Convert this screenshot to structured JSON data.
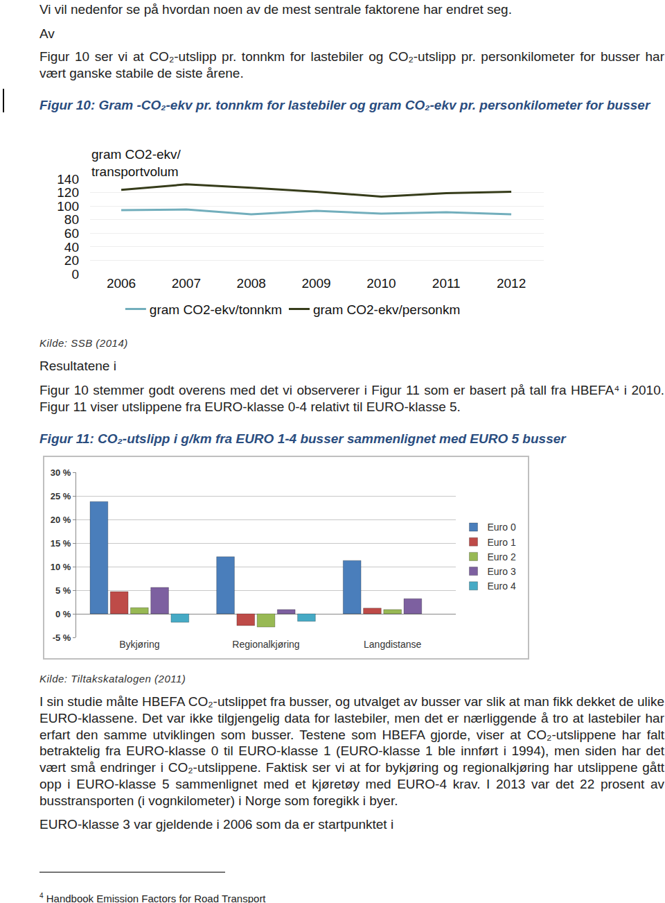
{
  "page": {
    "intro": "Vi vil nedenfor se på hvordan noen av de mest sentrale faktorene har endret seg.",
    "av": "Av",
    "para1": "Figur 10 ser vi at CO₂-utslipp pr. tonnkm for lastebiler og CO₂-utslipp pr. personkilometer for busser har vært ganske stabile de siste årene.",
    "fig10_caption": "Figur 10: Gram -CO₂-ekv pr. tonnkm for lastebiler og gram CO₂-ekv pr. personkilometer for busser",
    "fig10_source": "Kilde: SSB (2014)",
    "resultatene": "Resultatene i",
    "para2": "Figur 10 stemmer godt overens med det vi observerer i Figur 11 som er basert på tall fra HBEFA⁴ i 2010. Figur 11 viser utslippene fra EURO-klasse 0-4 relativt til EURO-klasse 5.",
    "fig11_caption": "Figur 11: CO₂-utslipp i g/km fra EURO 1-4 busser sammenlignet med EURO 5 busser",
    "fig11_source": "Kilde: Tiltakskatalogen (2011)",
    "para3": "I sin studie målte HBEFA CO₂-utslippet fra busser, og utvalget av busser var slik at man fikk dekket de ulike EURO-klassene. Det var ikke tilgjengelig data for lastebiler, men det er nærliggende å tro at lastebiler har erfart den samme utviklingen som busser. Testene som HBEFA gjorde, viser at CO₂-utslippene har falt betraktelig fra EURO-klasse 0 til EURO-klasse 1 (EURO-klasse 1 ble innført i 1994), men siden har det vært små endringer i CO₂-utslippene. Faktisk ser vi at for bykjøring og regionalkjøring har utslippene gått opp i EURO-klasse 5 sammenlignet med et kjøretøy med EURO-4 krav. I 2013 var det 22 prosent av busstransporten (i vognkilometer) i Norge som foregikk i byer.",
    "para4": "EURO-klasse 3 var gjeldende i 2006 som da er startpunktet i",
    "footnote_mark": "4",
    "footnote_text": "Handbook Emission Factors for Road Transport"
  },
  "chart_data": [
    {
      "type": "line",
      "y_label": "gram CO2-ekv/ transportvolum",
      "categories": [
        "2006",
        "2007",
        "2008",
        "2009",
        "2010",
        "2011",
        "2012"
      ],
      "series": [
        {
          "name": "gram CO2-ekv/tonnkm",
          "color": "#72aebc",
          "values": [
            94,
            95,
            88,
            93,
            89,
            91,
            88
          ]
        },
        {
          "name": "gram CO2-ekv/personkm",
          "color": "#363c1a",
          "values": [
            124,
            132,
            127,
            121,
            114,
            119,
            121
          ]
        }
      ],
      "ylim": [
        0,
        140
      ],
      "yticks": [
        0,
        20,
        40,
        60,
        80,
        100,
        120,
        140
      ],
      "grid": true,
      "legend": "bottom"
    },
    {
      "type": "bar",
      "categories": [
        "Bykjøring",
        "Regionalkjøring",
        "Langdistanse"
      ],
      "series": [
        {
          "name": "Euro 0",
          "color": "#4a7ebb",
          "values": [
            23.8,
            12.1,
            11.3
          ]
        },
        {
          "name": "Euro 1",
          "color": "#be4b48",
          "values": [
            4.7,
            -2.5,
            1.2
          ]
        },
        {
          "name": "Euro 2",
          "color": "#98b954",
          "values": [
            1.3,
            -2.8,
            0.9
          ]
        },
        {
          "name": "Euro 3",
          "color": "#7d60a0",
          "values": [
            5.6,
            0.9,
            3.2
          ]
        },
        {
          "name": "Euro 4",
          "color": "#46aac5",
          "values": [
            -1.8,
            -1.6,
            null
          ]
        }
      ],
      "ylim": [
        -5,
        30
      ],
      "yticks": [
        {
          "value": -5,
          "label": "-5 %"
        },
        {
          "value": 0,
          "label": "0 %"
        },
        {
          "value": 5,
          "label": "5 %"
        },
        {
          "value": 10,
          "label": "10 %"
        },
        {
          "value": 15,
          "label": "15 %"
        },
        {
          "value": 20,
          "label": "20 %"
        },
        {
          "value": 25,
          "label": "25 %"
        },
        {
          "value": 30,
          "label": "30 %"
        }
      ],
      "grid": true,
      "legend": "right"
    }
  ]
}
